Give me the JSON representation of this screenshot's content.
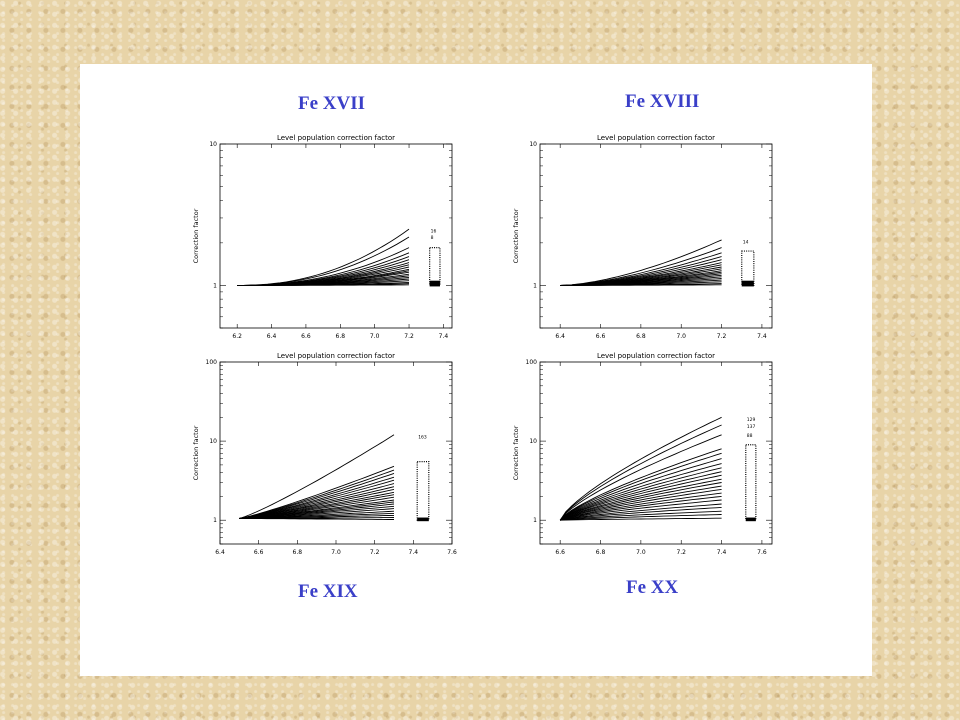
{
  "colors": {
    "title": "#3a3fc8",
    "ink": "#000000"
  },
  "chart_data": [
    {
      "type": "line",
      "label": "Fe XVII",
      "title": "Level population correction factor",
      "ylabel": "Correction factor",
      "yscale": "log",
      "xlim": [
        6.1,
        7.45
      ],
      "ylim": [
        0.5,
        10
      ],
      "xticks": [
        6.2,
        6.4,
        6.6,
        6.8,
        7.0,
        7.2,
        7.4
      ],
      "xtick_labels": [
        "6.2",
        "6.4",
        "6.6",
        "6.8",
        "7.0",
        "7.2",
        "7.4"
      ],
      "yticks": [
        1,
        10
      ],
      "ytick_labels": [
        "1",
        "10"
      ],
      "x_start": 6.2,
      "x_end": 7.2,
      "end_values": [
        2.5,
        2.2,
        1.85,
        1.7,
        1.6,
        1.52,
        1.45,
        1.4,
        1.35,
        1.3,
        1.27,
        1.24,
        1.2,
        1.17,
        1.14,
        1.11,
        1.08,
        1.05,
        1.03,
        1.01
      ],
      "start_value": 1.0,
      "curve_power": 2.2,
      "marker_x": 7.32,
      "marker_width": 0.06,
      "marker_top": 1.85,
      "end_labels": [
        {
          "text": "16",
          "y": 2.45
        },
        {
          "text": "8",
          "y": 2.2
        }
      ]
    },
    {
      "type": "line",
      "label": "Fe XVIII",
      "title": "Level population correction factor",
      "ylabel": "Correction factor",
      "yscale": "log",
      "xlim": [
        6.3,
        7.45
      ],
      "ylim": [
        0.5,
        10
      ],
      "xticks": [
        6.4,
        6.6,
        6.8,
        7.0,
        7.2,
        7.4
      ],
      "xtick_labels": [
        "6.4",
        "6.6",
        "6.8",
        "7.0",
        "7.2",
        "7.4"
      ],
      "yticks": [
        1,
        10
      ],
      "ytick_labels": [
        "1",
        "10"
      ],
      "x_start": 6.4,
      "x_end": 7.2,
      "end_values": [
        2.1,
        1.85,
        1.7,
        1.6,
        1.52,
        1.45,
        1.4,
        1.35,
        1.31,
        1.27,
        1.24,
        1.21,
        1.18,
        1.15,
        1.12,
        1.09,
        1.06,
        1.03,
        1.01
      ],
      "start_value": 1.0,
      "curve_power": 1.6,
      "marker_x": 7.3,
      "marker_width": 0.06,
      "marker_top": 1.75,
      "end_labels": [
        {
          "text": "14",
          "y": 2.05
        }
      ]
    },
    {
      "type": "line",
      "label": "Fe XIX",
      "title": "Level population correction factor",
      "ylabel": "Correction factor",
      "yscale": "log",
      "xlim": [
        6.4,
        7.6
      ],
      "ylim": [
        0.5,
        100
      ],
      "xticks": [
        6.4,
        6.6,
        6.8,
        7.0,
        7.2,
        7.4,
        7.6
      ],
      "xtick_labels": [
        "6.4",
        "6.6",
        "6.8",
        "7.0",
        "7.2",
        "7.4",
        "7.6"
      ],
      "yticks": [
        1,
        10,
        100
      ],
      "ytick_labels": [
        "1",
        "10",
        "100"
      ],
      "x_start": 6.5,
      "x_end": 7.3,
      "end_values": [
        12,
        4.8,
        4.3,
        3.9,
        3.5,
        3.2,
        2.9,
        2.65,
        2.45,
        2.25,
        2.1,
        1.95,
        1.8,
        1.7,
        1.6,
        1.5,
        1.4,
        1.3,
        1.22,
        1.15,
        1.08,
        1.02
      ],
      "start_value": 1.05,
      "curve_power": 1.15,
      "marker_x": 7.42,
      "marker_width": 0.06,
      "marker_top": 5.5,
      "end_labels": [
        {
          "text": "163",
          "y": 11.5
        }
      ]
    },
    {
      "type": "line",
      "label": "Fe XX",
      "title": "Level population correction factor",
      "ylabel": "Correction factor",
      "yscale": "log",
      "xlim": [
        6.5,
        7.65
      ],
      "ylim": [
        0.5,
        100
      ],
      "xticks": [
        6.6,
        6.8,
        7.0,
        7.2,
        7.4,
        7.6
      ],
      "xtick_labels": [
        "6.6",
        "6.8",
        "7.0",
        "7.2",
        "7.4",
        "7.6"
      ],
      "yticks": [
        1,
        10,
        100
      ],
      "ytick_labels": [
        "1",
        "10",
        "100"
      ],
      "x_start": 6.6,
      "x_end": 7.4,
      "end_values": [
        20,
        16,
        12,
        8,
        7,
        6,
        5.2,
        4.6,
        4.1,
        3.7,
        3.3,
        3.0,
        2.7,
        2.45,
        2.2,
        2.0,
        1.8,
        1.6,
        1.45,
        1.3,
        1.18,
        1.06
      ],
      "start_value": 1.0,
      "curve_power": 0.75,
      "marker_x": 7.52,
      "marker_width": 0.05,
      "marker_top": 9,
      "end_labels": [
        {
          "text": "129",
          "y": 19
        },
        {
          "text": "137",
          "y": 15.5
        },
        {
          "text": "88",
          "y": 12
        }
      ]
    }
  ]
}
